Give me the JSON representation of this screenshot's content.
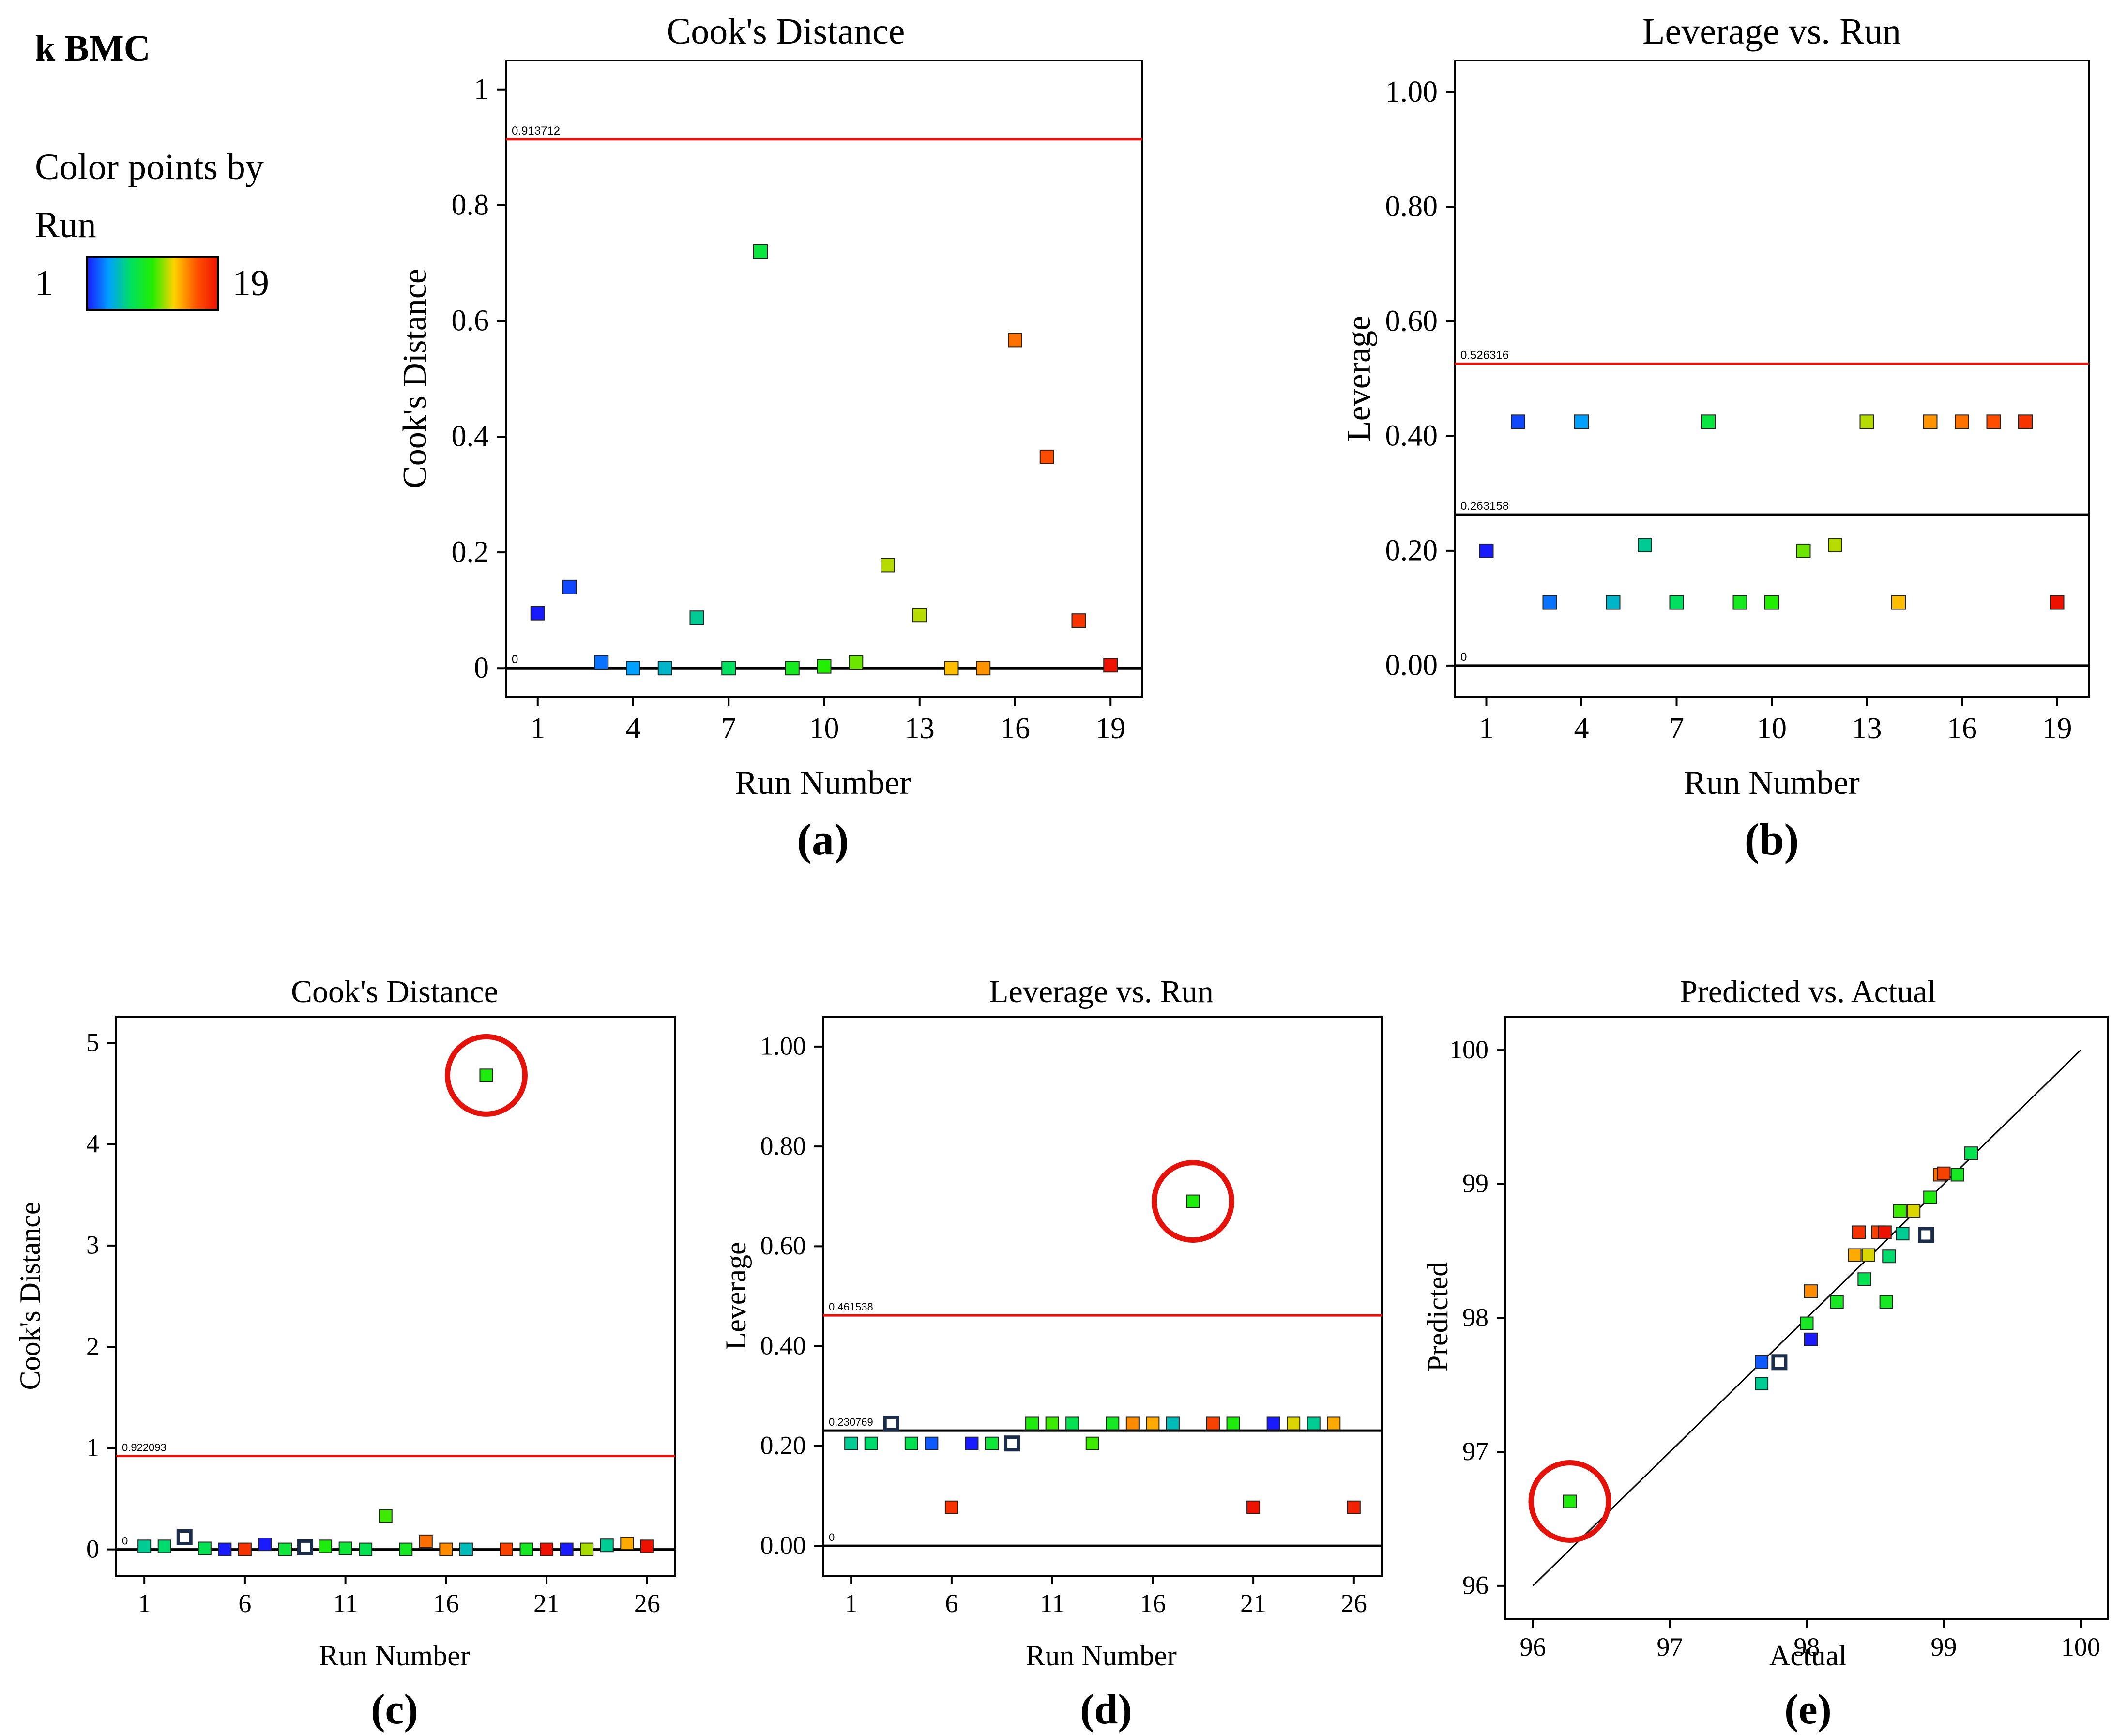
{
  "figure_label": "k BMC",
  "legend": {
    "title_line1": "Color points by",
    "title_line2": "Run",
    "min_label": "1",
    "max_label": "19",
    "gradient_colors": [
      "#1a1aff",
      "#00a0ff",
      "#00e060",
      "#22ee00",
      "#ffd200",
      "#ff5500",
      "#ee1100"
    ]
  },
  "colors": {
    "ref_line_red": "#e3120b",
    "axis": "#000000",
    "highlight_circle": "#e3120b"
  },
  "chart_data": [
    {
      "id": "a",
      "type": "scatter",
      "title": "Cook's Distance",
      "xlabel": "Run Number",
      "ylabel": "Cook's Distance",
      "panel_label": "(a)",
      "xlim": [
        0,
        20
      ],
      "ylim": [
        -0.05,
        1.05
      ],
      "xticks": [
        1,
        4,
        7,
        10,
        13,
        16,
        19
      ],
      "yticks": [
        0,
        0.2,
        0.4,
        0.6,
        0.8,
        1
      ],
      "ytick_labels": [
        "0",
        "0.2",
        "0.4",
        "0.6",
        "0.8",
        "1"
      ],
      "color_range": [
        1,
        19
      ],
      "ref_lines": [
        {
          "value": 0.913712,
          "label": "0.913712",
          "color": "red"
        },
        {
          "value": 0,
          "label": "0",
          "color": "black"
        }
      ],
      "points": [
        {
          "x": 1,
          "y": 0.095,
          "c": 1
        },
        {
          "x": 2,
          "y": 0.14,
          "c": 2
        },
        {
          "x": 3,
          "y": 0.01,
          "c": 3
        },
        {
          "x": 4,
          "y": 0.0,
          "c": 4
        },
        {
          "x": 5,
          "y": 0.0,
          "c": 5
        },
        {
          "x": 6,
          "y": 0.087,
          "c": 6
        },
        {
          "x": 7,
          "y": 0.0,
          "c": 7
        },
        {
          "x": 8,
          "y": 0.72,
          "c": 8
        },
        {
          "x": 9,
          "y": 0.0,
          "c": 9
        },
        {
          "x": 10,
          "y": 0.003,
          "c": 10
        },
        {
          "x": 11,
          "y": 0.01,
          "c": 11
        },
        {
          "x": 12,
          "y": 0.178,
          "c": 12
        },
        {
          "x": 13,
          "y": 0.092,
          "c": 12
        },
        {
          "x": 14,
          "y": 0.0,
          "c": 13.5
        },
        {
          "x": 15,
          "y": 0.0,
          "c": 14.5
        },
        {
          "x": 16,
          "y": 0.567,
          "c": 15.3
        },
        {
          "x": 17,
          "y": 0.365,
          "c": 16.3
        },
        {
          "x": 18,
          "y": 0.082,
          "c": 17.5
        },
        {
          "x": 19,
          "y": 0.005,
          "c": 19
        }
      ]
    },
    {
      "id": "b",
      "type": "scatter",
      "title": "Leverage vs. Run",
      "xlabel": "Run Number",
      "ylabel": "Leverage",
      "panel_label": "(b)",
      "xlim": [
        0,
        20
      ],
      "ylim": [
        -0.055,
        1.055
      ],
      "xticks": [
        1,
        4,
        7,
        10,
        13,
        16,
        19
      ],
      "yticks": [
        0,
        0.2,
        0.4,
        0.6,
        0.8,
        1
      ],
      "ytick_labels": [
        "0.00",
        "0.20",
        "0.40",
        "0.60",
        "0.80",
        "1.00"
      ],
      "color_range": [
        1,
        19
      ],
      "ref_lines": [
        {
          "value": 0.526316,
          "label": "0.526316",
          "color": "red"
        },
        {
          "value": 0.263158,
          "label": "0.263158",
          "color": "black"
        },
        {
          "value": 0,
          "label": "0",
          "color": "black"
        }
      ],
      "points": [
        {
          "x": 1,
          "y": 0.2,
          "c": 1
        },
        {
          "x": 2,
          "y": 0.425,
          "c": 2
        },
        {
          "x": 3,
          "y": 0.11,
          "c": 3
        },
        {
          "x": 4,
          "y": 0.425,
          "c": 4
        },
        {
          "x": 5,
          "y": 0.11,
          "c": 5
        },
        {
          "x": 6,
          "y": 0.21,
          "c": 6
        },
        {
          "x": 7,
          "y": 0.11,
          "c": 7
        },
        {
          "x": 8,
          "y": 0.425,
          "c": 8
        },
        {
          "x": 9,
          "y": 0.11,
          "c": 9
        },
        {
          "x": 10,
          "y": 0.11,
          "c": 10
        },
        {
          "x": 11,
          "y": 0.2,
          "c": 11
        },
        {
          "x": 12,
          "y": 0.21,
          "c": 12
        },
        {
          "x": 13,
          "y": 0.425,
          "c": 12
        },
        {
          "x": 14,
          "y": 0.11,
          "c": 13.5
        },
        {
          "x": 15,
          "y": 0.425,
          "c": 14.5
        },
        {
          "x": 16,
          "y": 0.425,
          "c": 15.3
        },
        {
          "x": 17,
          "y": 0.425,
          "c": 16.3
        },
        {
          "x": 18,
          "y": 0.425,
          "c": 17.5
        },
        {
          "x": 19,
          "y": 0.11,
          "c": 19
        }
      ]
    },
    {
      "id": "c",
      "type": "scatter",
      "title": "Cook's Distance",
      "xlabel": "Run Number",
      "ylabel": "Cook's Distance",
      "panel_label": "(c)",
      "xlim": [
        -0.4,
        27.4
      ],
      "ylim": [
        -0.26,
        5.26
      ],
      "xticks": [
        1,
        6,
        11,
        16,
        21,
        26
      ],
      "yticks": [
        0,
        1,
        2,
        3,
        4,
        5
      ],
      "ytick_labels": [
        "0",
        "1",
        "2",
        "3",
        "4",
        "5"
      ],
      "color_range": [
        1,
        26
      ],
      "ref_lines": [
        {
          "value": 0.922093,
          "label": "0.922093",
          "color": "red"
        },
        {
          "value": 0,
          "label": "0",
          "color": "black"
        }
      ],
      "highlight": {
        "x": 18,
        "y": 4.68
      },
      "points": [
        {
          "x": 1,
          "y": 0.03,
          "c": 8
        },
        {
          "x": 2,
          "y": 0.03,
          "c": 9
        },
        {
          "x": 3,
          "y": 0.12,
          "c": 0,
          "open": true
        },
        {
          "x": 4,
          "y": 0.01,
          "c": 10
        },
        {
          "x": 5,
          "y": 0.0,
          "c": 1
        },
        {
          "x": 6,
          "y": 0.0,
          "c": 24
        },
        {
          "x": 7,
          "y": 0.05,
          "c": 1
        },
        {
          "x": 8,
          "y": 0.0,
          "c": 11
        },
        {
          "x": 9,
          "y": 0.02,
          "c": 0,
          "open": true
        },
        {
          "x": 10,
          "y": 0.03,
          "c": 13
        },
        {
          "x": 11,
          "y": 0.01,
          "c": 11
        },
        {
          "x": 12,
          "y": 0.0,
          "c": 10
        },
        {
          "x": 13,
          "y": 0.33,
          "c": 14
        },
        {
          "x": 14,
          "y": 0.0,
          "c": 12
        },
        {
          "x": 15,
          "y": 0.08,
          "c": 21
        },
        {
          "x": 16,
          "y": 0.0,
          "c": 20
        },
        {
          "x": 17,
          "y": 0.0,
          "c": 7
        },
        {
          "x": 18,
          "y": 4.68,
          "c": 13
        },
        {
          "x": 19,
          "y": 0.0,
          "c": 23
        },
        {
          "x": 20,
          "y": 0.0,
          "c": 12
        },
        {
          "x": 21,
          "y": 0.0,
          "c": 26
        },
        {
          "x": 22,
          "y": 0.0,
          "c": 1
        },
        {
          "x": 23,
          "y": 0.0,
          "c": 16
        },
        {
          "x": 24,
          "y": 0.04,
          "c": 8
        },
        {
          "x": 25,
          "y": 0.06,
          "c": 19
        },
        {
          "x": 26,
          "y": 0.03,
          "c": 26
        }
      ]
    },
    {
      "id": "d",
      "type": "scatter",
      "title": "Leverage vs. Run",
      "xlabel": "Run Number",
      "ylabel": "Leverage",
      "panel_label": "(d)",
      "xlim": [
        -0.4,
        27.4
      ],
      "ylim": [
        -0.06,
        1.06
      ],
      "xticks": [
        1,
        6,
        11,
        16,
        21,
        26
      ],
      "yticks": [
        0,
        0.2,
        0.4,
        0.6,
        0.8,
        1
      ],
      "ytick_labels": [
        "0.00",
        "0.20",
        "0.40",
        "0.60",
        "0.80",
        "1.00"
      ],
      "color_range": [
        1,
        26
      ],
      "ref_lines": [
        {
          "value": 0.461538,
          "label": "0.461538",
          "color": "red"
        },
        {
          "value": 0.230769,
          "label": "0.230769",
          "color": "black"
        },
        {
          "value": 0,
          "label": "0",
          "color": "black"
        }
      ],
      "highlight": {
        "x": 18,
        "y": 0.69
      },
      "points": [
        {
          "x": 1,
          "y": 0.205,
          "c": 8
        },
        {
          "x": 2,
          "y": 0.205,
          "c": 9
        },
        {
          "x": 3,
          "y": 0.245,
          "c": 0,
          "open": true
        },
        {
          "x": 4,
          "y": 0.205,
          "c": 10
        },
        {
          "x": 5,
          "y": 0.205,
          "c": 3
        },
        {
          "x": 6,
          "y": 0.077,
          "c": 24
        },
        {
          "x": 7,
          "y": 0.205,
          "c": 1
        },
        {
          "x": 8,
          "y": 0.205,
          "c": 11
        },
        {
          "x": 9,
          "y": 0.205,
          "c": 0,
          "open": true
        },
        {
          "x": 10,
          "y": 0.245,
          "c": 13
        },
        {
          "x": 11,
          "y": 0.245,
          "c": 14
        },
        {
          "x": 12,
          "y": 0.245,
          "c": 10
        },
        {
          "x": 13,
          "y": 0.205,
          "c": 14
        },
        {
          "x": 14,
          "y": 0.245,
          "c": 12
        },
        {
          "x": 15,
          "y": 0.245,
          "c": 20
        },
        {
          "x": 16,
          "y": 0.245,
          "c": 19
        },
        {
          "x": 17,
          "y": 0.245,
          "c": 7
        },
        {
          "x": 18,
          "y": 0.69,
          "c": 13
        },
        {
          "x": 19,
          "y": 0.245,
          "c": 23
        },
        {
          "x": 20,
          "y": 0.245,
          "c": 13
        },
        {
          "x": 21,
          "y": 0.077,
          "c": 26
        },
        {
          "x": 22,
          "y": 0.245,
          "c": 1
        },
        {
          "x": 23,
          "y": 0.245,
          "c": 17
        },
        {
          "x": 24,
          "y": 0.245,
          "c": 8
        },
        {
          "x": 25,
          "y": 0.245,
          "c": 19
        },
        {
          "x": 26,
          "y": 0.077,
          "c": 25
        }
      ]
    },
    {
      "id": "e",
      "type": "scatter",
      "title": "Predicted vs. Actual",
      "xlabel": "Actual",
      "ylabel": "Predicted",
      "panel_label": "(e)",
      "xlim": [
        95.8,
        100.2
      ],
      "ylim": [
        95.75,
        100.25
      ],
      "xticks": [
        96,
        97,
        98,
        99,
        100
      ],
      "yticks": [
        96,
        97,
        98,
        99,
        100
      ],
      "ytick_labels": [
        "96",
        "97",
        "98",
        "99",
        "100"
      ],
      "color_range": [
        1,
        26
      ],
      "diagonal": [
        96,
        100
      ],
      "highlight": {
        "x": 96.27,
        "y": 96.63
      },
      "points": [
        {
          "x": 96.27,
          "y": 96.63,
          "c": 13
        },
        {
          "x": 97.67,
          "y": 97.51,
          "c": 8
        },
        {
          "x": 97.67,
          "y": 97.67,
          "c": 3
        },
        {
          "x": 97.8,
          "y": 97.67,
          "c": 0,
          "open": true
        },
        {
          "x": 98.0,
          "y": 97.96,
          "c": 12
        },
        {
          "x": 98.03,
          "y": 97.84,
          "c": 1
        },
        {
          "x": 98.03,
          "y": 98.2,
          "c": 20
        },
        {
          "x": 98.22,
          "y": 98.12,
          "c": 12
        },
        {
          "x": 98.35,
          "y": 98.47,
          "c": 19
        },
        {
          "x": 98.38,
          "y": 98.64,
          "c": 24
        },
        {
          "x": 98.42,
          "y": 98.29,
          "c": 10
        },
        {
          "x": 98.45,
          "y": 98.47,
          "c": 17
        },
        {
          "x": 98.52,
          "y": 98.64,
          "c": 23
        },
        {
          "x": 98.57,
          "y": 98.64,
          "c": 26
        },
        {
          "x": 98.58,
          "y": 98.12,
          "c": 12
        },
        {
          "x": 98.6,
          "y": 98.46,
          "c": 9
        },
        {
          "x": 98.68,
          "y": 98.8,
          "c": 14
        },
        {
          "x": 98.7,
          "y": 98.63,
          "c": 8
        },
        {
          "x": 98.78,
          "y": 98.8,
          "c": 17
        },
        {
          "x": 98.87,
          "y": 98.62,
          "c": 0,
          "open": true
        },
        {
          "x": 98.9,
          "y": 98.9,
          "c": 13
        },
        {
          "x": 98.97,
          "y": 99.07,
          "c": 21
        },
        {
          "x": 99.0,
          "y": 99.08,
          "c": 23
        },
        {
          "x": 99.1,
          "y": 99.07,
          "c": 12
        },
        {
          "x": 99.2,
          "y": 99.23,
          "c": 10
        }
      ]
    }
  ]
}
